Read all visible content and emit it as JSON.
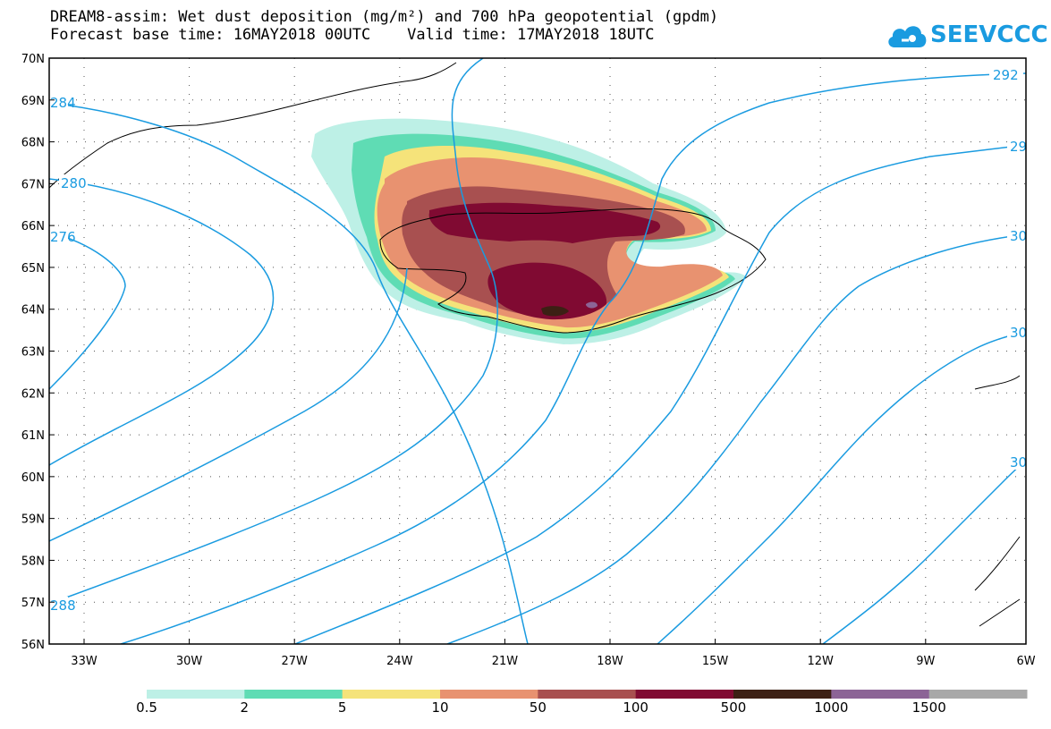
{
  "title": {
    "line1": "DREAM8-assim: Wet dust deposition (mg/m²) and 700 hPa geopotential (gpdm)",
    "line2": "Forecast base time: 16MAY2018 00UTC    Valid time: 17MAY2018 18UTC"
  },
  "logo": {
    "text": "SEEVCCC",
    "icon": "cloud-logo-icon",
    "color": "#1a9be0"
  },
  "map": {
    "lat_labels": [
      "70N",
      "69N",
      "68N",
      "67N",
      "66N",
      "65N",
      "64N",
      "63N",
      "62N",
      "61N",
      "60N",
      "59N",
      "58N",
      "57N",
      "56N"
    ],
    "lon_labels": [
      "33W",
      "30W",
      "27W",
      "24W",
      "21W",
      "18W",
      "15W",
      "12W",
      "9W",
      "6W"
    ],
    "contour_color": "#1a9be0",
    "contour_labels": [
      "284",
      "280",
      "276",
      "288",
      "292",
      "29",
      "30",
      "30",
      "30"
    ]
  },
  "legend": {
    "colors": [
      "#bdf0e6",
      "#5fdcb4",
      "#f5e37a",
      "#e89270",
      "#a85050",
      "#800a32",
      "#3c2014",
      "#8c6496",
      "#a8a8a8"
    ],
    "labels": [
      "0.5",
      "2",
      "5",
      "10",
      "50",
      "100",
      "500",
      "1000",
      "1500"
    ]
  }
}
